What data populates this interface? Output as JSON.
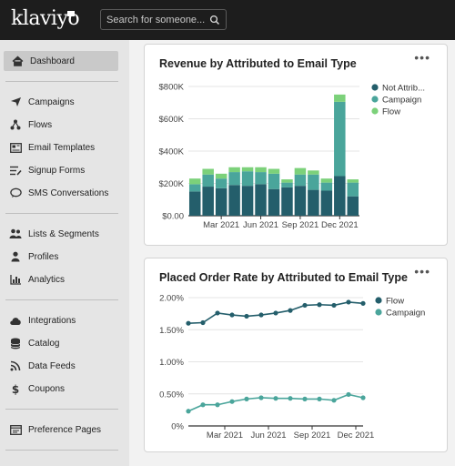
{
  "app": {
    "logo_text": "klaviyo",
    "search_placeholder": "Search for someone..."
  },
  "sidebar": {
    "groups": [
      [
        {
          "label": "Dashboard",
          "icon": "home-icon",
          "active": true
        }
      ],
      [
        {
          "label": "Campaigns",
          "icon": "send-icon"
        },
        {
          "label": "Flows",
          "icon": "flow-icon"
        },
        {
          "label": "Email Templates",
          "icon": "template-icon"
        },
        {
          "label": "Signup Forms",
          "icon": "form-icon"
        },
        {
          "label": "SMS Conversations",
          "icon": "chat-icon"
        }
      ],
      [
        {
          "label": "Lists & Segments",
          "icon": "people-icon"
        },
        {
          "label": "Profiles",
          "icon": "profile-icon"
        },
        {
          "label": "Analytics",
          "icon": "analytics-icon"
        }
      ],
      [
        {
          "label": "Integrations",
          "icon": "cloud-icon"
        },
        {
          "label": "Catalog",
          "icon": "database-icon"
        },
        {
          "label": "Data Feeds",
          "icon": "rss-icon"
        },
        {
          "label": "Coupons",
          "icon": "dollar-icon"
        }
      ],
      [
        {
          "label": "Preference Pages",
          "icon": "page-icon"
        }
      ]
    ]
  },
  "cards": {
    "revenue": {
      "title": "Revenue by Attributed to Email Type",
      "menu": "•••"
    },
    "order_rate": {
      "title": "Placed Order Rate by Attributed to Email Type",
      "menu": "•••"
    }
  },
  "colors": {
    "not_attributed": "#245e6b",
    "campaign": "#4aa59b",
    "flow": "#7cd17a"
  },
  "chart_data": [
    {
      "type": "bar",
      "stacked": true,
      "title": "Revenue by Attributed to Email Type",
      "x_tick_labels": [
        "Mar 2021",
        "Jun 2021",
        "Sep 2021",
        "Dec 2021"
      ],
      "y_tick_labels": [
        "$0.00",
        "$200K",
        "$400K",
        "$600K",
        "$800K"
      ],
      "ylim": [
        0,
        800000
      ],
      "legend_position": "right",
      "categories": [
        "Jan 2021",
        "Feb 2021",
        "Mar 2021",
        "Apr 2021",
        "May 2021",
        "Jun 2021",
        "Jul 2021",
        "Aug 2021",
        "Sep 2021",
        "Oct 2021",
        "Nov 2021",
        "Dec 2021",
        "Jan 2022"
      ],
      "series": [
        {
          "name": "Not Attrib...",
          "values": [
            150000,
            180000,
            170000,
            190000,
            185000,
            195000,
            165000,
            175000,
            185000,
            160000,
            155000,
            245000,
            120000
          ]
        },
        {
          "name": "Campaign",
          "values": [
            45000,
            75000,
            60000,
            80000,
            90000,
            75000,
            95000,
            30000,
            70000,
            95000,
            50000,
            460000,
            85000
          ]
        },
        {
          "name": "Flow",
          "values": [
            35000,
            35000,
            30000,
            30000,
            25000,
            30000,
            30000,
            20000,
            40000,
            25000,
            25000,
            45000,
            20000
          ]
        }
      ]
    },
    {
      "type": "line",
      "title": "Placed Order Rate by Attributed to Email Type",
      "x_tick_labels": [
        "Mar 2021",
        "Jun 2021",
        "Sep 2021",
        "Dec 2021"
      ],
      "y_tick_labels": [
        "0%",
        "0.50%",
        "1.00%",
        "1.50%",
        "2.00%"
      ],
      "ylim": [
        0,
        2.0
      ],
      "legend_position": "right",
      "categories": [
        "Jan 2021",
        "Feb 2021",
        "Mar 2021",
        "Apr 2021",
        "May 2021",
        "Jun 2021",
        "Jul 2021",
        "Aug 2021",
        "Sep 2021",
        "Oct 2021",
        "Nov 2021",
        "Dec 2021",
        "Jan 2022"
      ],
      "series": [
        {
          "name": "Flow",
          "values": [
            1.6,
            1.61,
            1.76,
            1.73,
            1.71,
            1.73,
            1.76,
            1.8,
            1.88,
            1.89,
            1.88,
            1.93,
            1.91
          ]
        },
        {
          "name": "Campaign",
          "values": [
            0.23,
            0.33,
            0.33,
            0.38,
            0.42,
            0.44,
            0.43,
            0.43,
            0.42,
            0.42,
            0.4,
            0.49,
            0.44
          ]
        }
      ]
    }
  ]
}
